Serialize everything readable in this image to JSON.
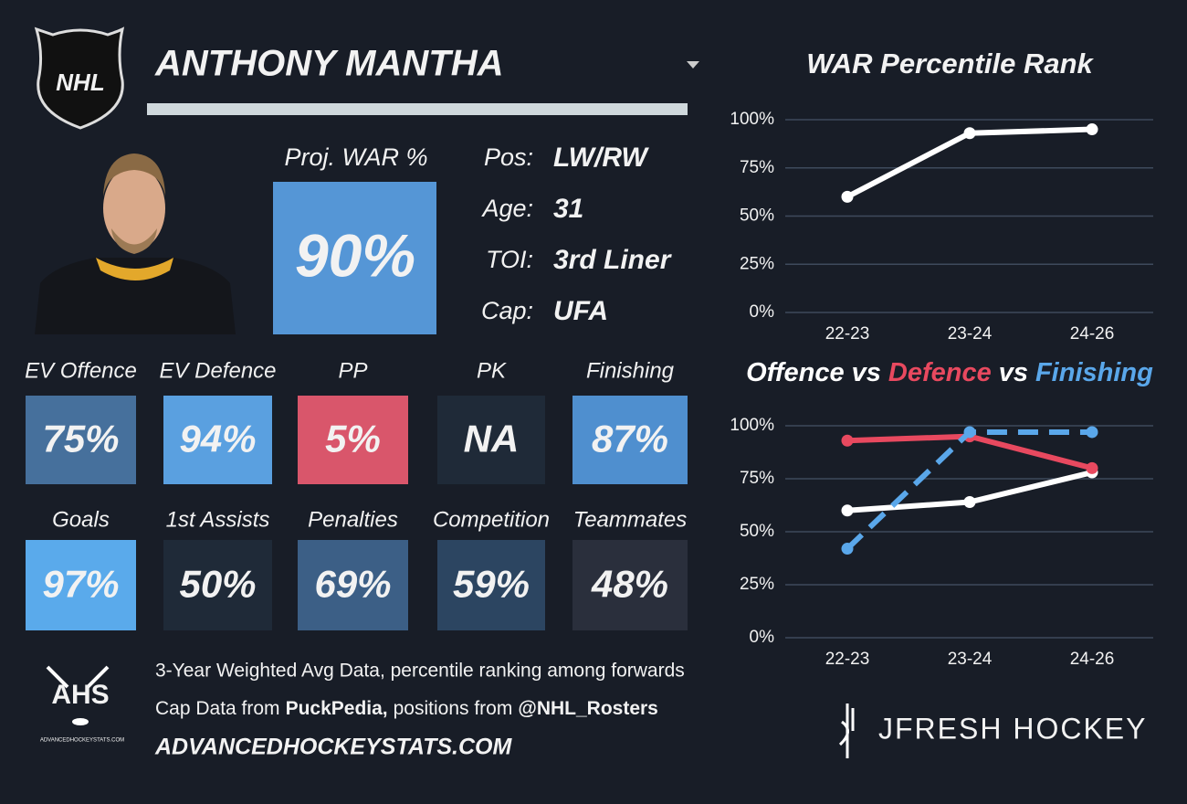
{
  "header": {
    "logo": "NHL",
    "name": "ANTHONY MANTHA"
  },
  "projection": {
    "label": "Proj. WAR %",
    "value": "90%",
    "color": "#5596d6"
  },
  "info": [
    {
      "label": "Pos:",
      "value": "LW/RW"
    },
    {
      "label": "Age:",
      "value": "31"
    },
    {
      "label": "TOI:",
      "value": "3rd Liner"
    },
    {
      "label": "Cap:",
      "value": "UFA"
    }
  ],
  "tiles": [
    {
      "label": "EV Offence",
      "value": "75%",
      "color": "#46709c"
    },
    {
      "label": "EV Defence",
      "value": "94%",
      "color": "#5aa0e0"
    },
    {
      "label": "PP",
      "value": "5%",
      "color": "#d9566b"
    },
    {
      "label": "PK",
      "value": "NA",
      "color": "#1f2a38"
    },
    {
      "label": "Finishing",
      "value": "87%",
      "color": "#4f8fcf"
    },
    {
      "label": "Goals",
      "value": "97%",
      "color": "#5aaaeb"
    },
    {
      "label": "1st Assists",
      "value": "50%",
      "color": "#1f2a38"
    },
    {
      "label": "Penalties",
      "value": "69%",
      "color": "#3c5f86"
    },
    {
      "label": "Competition",
      "value": "59%",
      "color": "#2c4561"
    },
    {
      "label": "Teammates",
      "value": "48%",
      "color": "#2a2f3c"
    }
  ],
  "footer": {
    "logo": "AHS",
    "logo_caption": "ADVANCEDHOCKEYSTATS.COM",
    "line1": "3-Year Weighted Avg Data, percentile ranking among forwards",
    "line2": [
      {
        "text": "Cap Data from",
        "bold": false
      },
      {
        "text": "PuckPedia,",
        "bold": true
      },
      {
        "text": "positions from",
        "bold": false
      },
      {
        "text": "@NHL_Rosters",
        "bold": true
      }
    ],
    "line3": "ADVANCEDHOCKEYSTATS.COM"
  },
  "brand": "JFRESH HOCKEY",
  "charts": [
    {
      "type": "line",
      "title": "WAR Percentile Rank",
      "categories": [
        "22-23",
        "23-24",
        "24-26"
      ],
      "series": [
        {
          "color": "#ffffff",
          "dash": false,
          "values": [
            60,
            93,
            95
          ]
        }
      ],
      "ylim": [
        0,
        100
      ],
      "yticks": [
        {
          "value": 0,
          "label": "0%"
        },
        {
          "value": 25,
          "label": "25%"
        },
        {
          "value": 50,
          "label": "50%"
        },
        {
          "value": 75,
          "label": "75%"
        },
        {
          "value": 100,
          "label": "100%"
        }
      ],
      "grid": true
    },
    {
      "type": "line",
      "title_parts": [
        {
          "text": "Offence",
          "color": "#ffffff"
        },
        {
          "text": "vs",
          "color": "#ffffff"
        },
        {
          "text": "Defence",
          "color": "#e8495f"
        },
        {
          "text": "vs",
          "color": "#ffffff"
        },
        {
          "text": "Finishing",
          "color": "#5aa7ea"
        }
      ],
      "categories": [
        "22-23",
        "23-24",
        "24-26"
      ],
      "series": [
        {
          "color": "#ffffff",
          "dash": false,
          "values": [
            60,
            64,
            78
          ]
        },
        {
          "color": "#e8495f",
          "dash": false,
          "values": [
            93,
            95,
            80
          ]
        },
        {
          "color": "#5aa7ea",
          "dash": true,
          "values": [
            42,
            97,
            97
          ]
        }
      ],
      "ylim": [
        0,
        100
      ],
      "yticks": [
        {
          "value": 0,
          "label": "0%"
        },
        {
          "value": 25,
          "label": "25%"
        },
        {
          "value": 50,
          "label": "50%"
        },
        {
          "value": 75,
          "label": "75%"
        },
        {
          "value": 100,
          "label": "100%"
        }
      ],
      "grid": true
    }
  ]
}
